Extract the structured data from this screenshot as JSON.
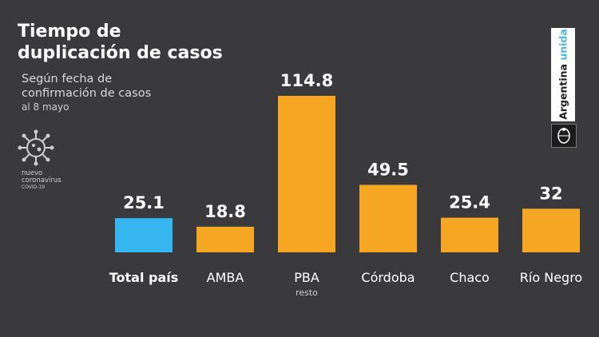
{
  "header": {
    "title_line1": "Tiempo de",
    "title_line2": "duplicación de casos",
    "subtitle_line1": "Según fecha de",
    "subtitle_line2": "confirmación de casos",
    "date_note": "al 8 mayo"
  },
  "logo": {
    "line1": "nuevo",
    "line2": "coronavirus",
    "line3": "COVID-19",
    "icon": "virus-icon"
  },
  "brand": {
    "word1": "Argentina",
    "word2": "unida",
    "accent_color": "#4ab8e8",
    "seal_icon": "coat-of-arms-icon"
  },
  "chart_data": {
    "type": "bar",
    "categories": [
      "Total país",
      "AMBA",
      "PBA",
      "Córdoba",
      "Chaco",
      "Río Negro"
    ],
    "category_sublabels": [
      "",
      "",
      "resto",
      "",
      "",
      ""
    ],
    "values": [
      25.1,
      18.8,
      114.8,
      49.5,
      25.4,
      32
    ],
    "value_labels": [
      "25.1",
      "18.8",
      "114.8",
      "49.5",
      "25.4",
      "32"
    ],
    "colors": [
      "#35b6ef",
      "#f5a623",
      "#f5a623",
      "#f5a623",
      "#f5a623",
      "#f5a623"
    ],
    "highlight_category": "Total país",
    "ylim": [
      0,
      114.8
    ],
    "grid": false,
    "legend": "none"
  }
}
